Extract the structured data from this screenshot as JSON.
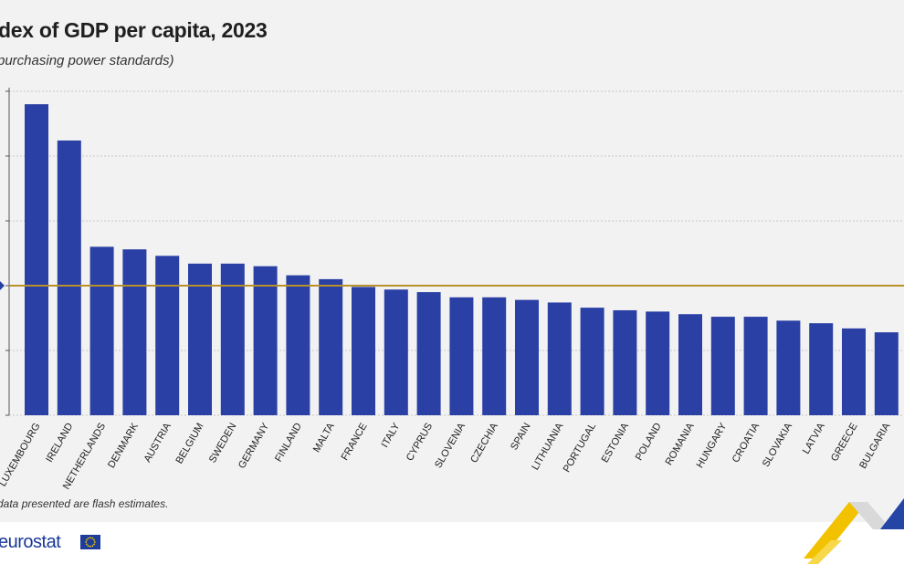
{
  "header": {
    "title": "dex of GDP per capita, 2023",
    "subtitle": "purchasing power standards)"
  },
  "note": "data presented are flash estimates.",
  "footer": {
    "brand": "eurostat",
    "flag_icon": "eu-flag-icon"
  },
  "colors": {
    "bar": "#2a40a5",
    "eu_line": "#b8912a",
    "grid": "#c8c8c8",
    "axis": "#555555"
  },
  "chart_data": {
    "type": "bar",
    "title": "dex of GDP per capita, 2023",
    "subtitle": "purchasing power standards)",
    "xlabel": "",
    "ylabel": "",
    "ylim": [
      0,
      250
    ],
    "grid": true,
    "reference_line": {
      "value": 100,
      "label": ""
    },
    "categories": [
      "LUXEMBOURG",
      "IRELAND",
      "NETHERLANDS",
      "DENMARK",
      "AUSTRIA",
      "BELGIUM",
      "SWEDEN",
      "GERMANY",
      "FINLAND",
      "MALTA",
      "FRANCE",
      "ITALY",
      "CYPRUS",
      "SLOVENIA",
      "CZECHIA",
      "SPAIN",
      "LITHUANIA",
      "PORTUGAL",
      "ESTONIA",
      "POLAND",
      "ROMANIA",
      "HUNGARY",
      "CROATIA",
      "SLOVAKIA",
      "LATVIA",
      "GREECE",
      "BULGARIA"
    ],
    "values": [
      240,
      212,
      130,
      128,
      123,
      117,
      117,
      115,
      108,
      105,
      99,
      97,
      95,
      91,
      91,
      89,
      87,
      83,
      81,
      80,
      78,
      76,
      76,
      73,
      71,
      67,
      64
    ]
  }
}
